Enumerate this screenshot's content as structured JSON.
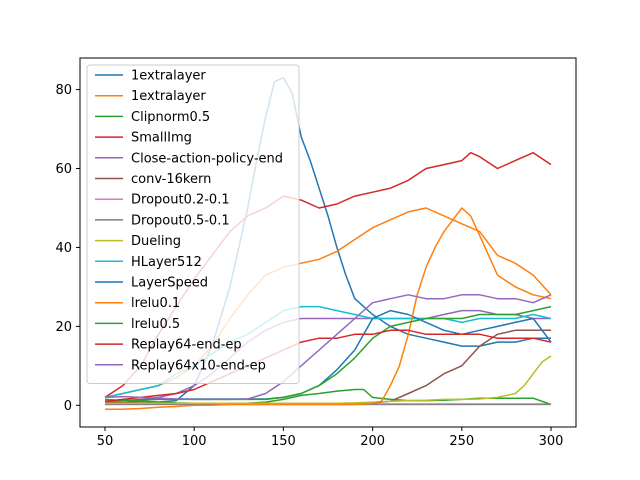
{
  "chart_data": {
    "type": "line",
    "title": "",
    "xlabel": "",
    "ylabel": "",
    "xlim": [
      36,
      314
    ],
    "ylim": [
      -5.5,
      88
    ],
    "x_ticks": [
      50,
      100,
      150,
      200,
      250,
      300
    ],
    "y_ticks": [
      0,
      20,
      40,
      60,
      80
    ],
    "grid": false,
    "legend_position": "upper-left",
    "series": [
      {
        "name": "1extralayer",
        "color": "#1f77b4",
        "x": [
          50,
          60,
          70,
          80,
          90,
          100,
          110,
          120,
          130,
          135,
          140,
          145,
          150,
          155,
          160,
          165,
          170,
          175,
          180,
          185,
          190,
          195,
          200,
          210,
          220,
          230,
          240,
          250,
          260,
          270,
          280,
          290,
          300
        ],
        "y": [
          0.5,
          0.6,
          1.0,
          0.8,
          1.2,
          5,
          15,
          30,
          50,
          62,
          73,
          82,
          83,
          79,
          68,
          62,
          55,
          48,
          40,
          33,
          27,
          25,
          23,
          20,
          18,
          17,
          16,
          15,
          15,
          16,
          16,
          17,
          17
        ]
      },
      {
        "name": "1extralayer",
        "color": "#ff7f0e",
        "x": [
          50,
          60,
          70,
          80,
          90,
          100,
          110,
          120,
          130,
          140,
          150,
          160,
          170,
          180,
          190,
          200,
          210,
          220,
          230,
          240,
          250,
          260,
          270,
          280,
          290,
          300
        ],
        "y": [
          2,
          3,
          4,
          5,
          7,
          10,
          15,
          22,
          28,
          33,
          35,
          36,
          37,
          39,
          42,
          45,
          47,
          49,
          50,
          48,
          46,
          44,
          38,
          36,
          33,
          28
        ]
      },
      {
        "name": "Clipnorm0.5",
        "color": "#2ca02c",
        "x": [
          50,
          60,
          70,
          80,
          90,
          100,
          110,
          120,
          130,
          140,
          150,
          160,
          170,
          180,
          190,
          195,
          200,
          210,
          220,
          230,
          240,
          250,
          260,
          270,
          280,
          290,
          300
        ],
        "y": [
          1.5,
          1.2,
          1.0,
          0.8,
          0.6,
          0.5,
          0.5,
          0.5,
          0.5,
          0.8,
          1.5,
          2.5,
          3,
          3.6,
          4,
          4,
          2,
          1.5,
          1.2,
          1.2,
          1.3,
          1.5,
          1.8,
          1.8,
          1.8,
          1.8,
          0.2
        ]
      },
      {
        "name": "SmallImg",
        "color": "#d62728",
        "x": [
          50,
          60,
          70,
          80,
          90,
          100,
          110,
          120,
          130,
          140,
          150,
          160,
          170,
          180,
          190,
          200,
          210,
          220,
          230,
          240,
          250,
          255,
          260,
          270,
          280,
          290,
          300
        ],
        "y": [
          2,
          5,
          10,
          18,
          25,
          32,
          38,
          44,
          48,
          50,
          53,
          52,
          50,
          51,
          53,
          54,
          55,
          57,
          60,
          61,
          62,
          64,
          63,
          60,
          62,
          64,
          61
        ]
      },
      {
        "name": "Close-action-policy-end",
        "color": "#9467bd",
        "x": [
          50,
          60,
          70,
          80,
          90,
          100,
          110,
          120,
          130,
          140,
          150,
          160,
          170,
          180,
          190,
          200,
          210,
          220,
          230,
          240,
          250,
          260,
          270,
          280,
          290,
          300
        ],
        "y": [
          1,
          1.2,
          1.5,
          2,
          3,
          5,
          8,
          12,
          16,
          19,
          21,
          22,
          22,
          22,
          22,
          22,
          22,
          22,
          22,
          23,
          24,
          24,
          23,
          23,
          22,
          22
        ]
      },
      {
        "name": "conv-16kern",
        "color": "#8c564b",
        "x": [
          50,
          60,
          70,
          80,
          90,
          100,
          110,
          120,
          130,
          140,
          150,
          160,
          170,
          180,
          190,
          200,
          210,
          220,
          230,
          240,
          250,
          260,
          270,
          280,
          290,
          300
        ],
        "y": [
          0.8,
          0.7,
          0.6,
          0.5,
          0.5,
          0.5,
          0.4,
          0.4,
          0.4,
          0.4,
          0.5,
          0.5,
          0.5,
          0.5,
          0.5,
          0.6,
          1,
          3,
          5,
          8,
          10,
          15,
          18,
          19,
          19,
          19
        ]
      },
      {
        "name": "Dropout0.2-0.1",
        "color": "#e377c2",
        "x": [
          50,
          60,
          70,
          80,
          90,
          100,
          110,
          120,
          130,
          140,
          150,
          160,
          170,
          180,
          190,
          200,
          210,
          220,
          230,
          240,
          250,
          260,
          270,
          280,
          290,
          300
        ],
        "y": [
          0.2,
          0.2,
          0.2,
          0.2,
          0.2,
          0.2,
          0.2,
          0.2,
          0.2,
          0.2,
          0.2,
          0.2,
          0.2,
          0.2,
          0.2,
          0.2,
          0.2,
          0.2,
          0.2,
          0.2,
          0.2,
          0.2,
          0.2,
          0.2,
          0.2,
          0.2
        ]
      },
      {
        "name": "Dropout0.5-0.1",
        "color": "#7f7f7f",
        "x": [
          50,
          60,
          70,
          80,
          90,
          100,
          110,
          120,
          130,
          140,
          150,
          160,
          170,
          180,
          190,
          200,
          210,
          220,
          230,
          240,
          250,
          260,
          270,
          280,
          290,
          300
        ],
        "y": [
          0.3,
          0.3,
          0.3,
          0.3,
          0.3,
          0.3,
          0.3,
          0.3,
          0.3,
          0.3,
          0.3,
          0.3,
          0.3,
          0.3,
          0.3,
          0.3,
          0.3,
          0.3,
          0.3,
          0.3,
          0.3,
          0.3,
          0.3,
          0.3,
          0.3,
          0.3
        ]
      },
      {
        "name": "Dueling",
        "color": "#bcbd22",
        "x": [
          50,
          60,
          70,
          80,
          90,
          100,
          110,
          120,
          130,
          140,
          150,
          160,
          170,
          180,
          190,
          200,
          210,
          220,
          230,
          240,
          250,
          260,
          270,
          280,
          285,
          290,
          295,
          300
        ],
        "y": [
          0.5,
          0.5,
          0.5,
          0.5,
          0.5,
          0.5,
          0.5,
          0.5,
          0.5,
          0.5,
          0.5,
          0.5,
          0.5,
          0.5,
          0.6,
          0.8,
          1,
          1.2,
          1.3,
          1.5,
          1.5,
          1.6,
          2,
          3,
          5,
          8,
          11,
          12.5
        ]
      },
      {
        "name": "HLayer512",
        "color": "#17becf",
        "x": [
          50,
          60,
          70,
          80,
          90,
          100,
          110,
          120,
          130,
          140,
          150,
          160,
          170,
          180,
          190,
          200,
          210,
          220,
          230,
          240,
          250,
          260,
          270,
          280,
          290,
          300
        ],
        "y": [
          2,
          3,
          4,
          5,
          8,
          10,
          13,
          16,
          18,
          21,
          24,
          25,
          25,
          24,
          23,
          22,
          22,
          22,
          22,
          22,
          21,
          22,
          22,
          22,
          23,
          22
        ]
      },
      {
        "name": "LayerSpeed",
        "color": "#1f77b4",
        "x": [
          50,
          60,
          70,
          80,
          90,
          100,
          110,
          120,
          130,
          140,
          150,
          160,
          170,
          180,
          190,
          200,
          210,
          220,
          230,
          240,
          250,
          260,
          270,
          280,
          290,
          300
        ],
        "y": [
          1,
          1.2,
          1.4,
          1.6,
          1.6,
          1.6,
          1.6,
          1.6,
          1.6,
          1.6,
          2,
          3,
          5,
          9,
          14,
          22,
          24,
          23,
          21,
          19,
          18,
          19,
          20,
          21,
          22,
          16
        ]
      },
      {
        "name": "lrelu0.1",
        "color": "#ff7f0e",
        "x": [
          50,
          60,
          70,
          80,
          90,
          100,
          110,
          120,
          130,
          140,
          150,
          160,
          170,
          180,
          190,
          200,
          205,
          210,
          215,
          220,
          225,
          230,
          235,
          240,
          245,
          250,
          255,
          260,
          265,
          270,
          280,
          290,
          300
        ],
        "y": [
          -1,
          -1,
          -0.8,
          -0.5,
          -0.3,
          0,
          0,
          0.2,
          0.2,
          0.2,
          0.2,
          0.2,
          0.2,
          0.2,
          0.2,
          0.5,
          1,
          5,
          10,
          18,
          28,
          35,
          40,
          44,
          47,
          50,
          48,
          43,
          38,
          33,
          30,
          28,
          27
        ]
      },
      {
        "name": "lrelu0.5",
        "color": "#2ca02c",
        "x": [
          50,
          60,
          70,
          80,
          90,
          100,
          110,
          120,
          130,
          140,
          150,
          160,
          170,
          180,
          190,
          200,
          210,
          220,
          230,
          240,
          250,
          260,
          270,
          280,
          290,
          300
        ],
        "y": [
          1,
          1.2,
          1.3,
          1.5,
          1.5,
          1.5,
          1.5,
          1.5,
          1.5,
          1.5,
          2,
          3,
          5,
          8,
          12,
          17,
          20,
          21,
          22,
          22,
          22,
          23,
          23,
          23,
          24,
          25
        ]
      },
      {
        "name": "Replay64-end-ep",
        "color": "#d62728",
        "x": [
          50,
          60,
          70,
          80,
          90,
          100,
          110,
          120,
          130,
          140,
          150,
          160,
          170,
          180,
          190,
          200,
          210,
          220,
          230,
          240,
          250,
          260,
          270,
          280,
          290,
          300
        ],
        "y": [
          1,
          1.5,
          2,
          2.5,
          3,
          4,
          6,
          8,
          10,
          12,
          14,
          16,
          17,
          17,
          18,
          18,
          19,
          19,
          18,
          18,
          18,
          18,
          17,
          17,
          17,
          16
        ]
      },
      {
        "name": "Replay64x10-end-ep",
        "color": "#9467bd",
        "x": [
          50,
          60,
          70,
          80,
          90,
          100,
          110,
          120,
          130,
          140,
          150,
          160,
          170,
          180,
          190,
          200,
          210,
          220,
          230,
          240,
          250,
          260,
          270,
          280,
          290,
          300
        ],
        "y": [
          2,
          2.2,
          2,
          1.8,
          1.6,
          1.5,
          1.5,
          1.5,
          1.6,
          3,
          6,
          10,
          14,
          18,
          22,
          26,
          27,
          28,
          27,
          27,
          28,
          28,
          27,
          27,
          26,
          28
        ]
      }
    ]
  }
}
